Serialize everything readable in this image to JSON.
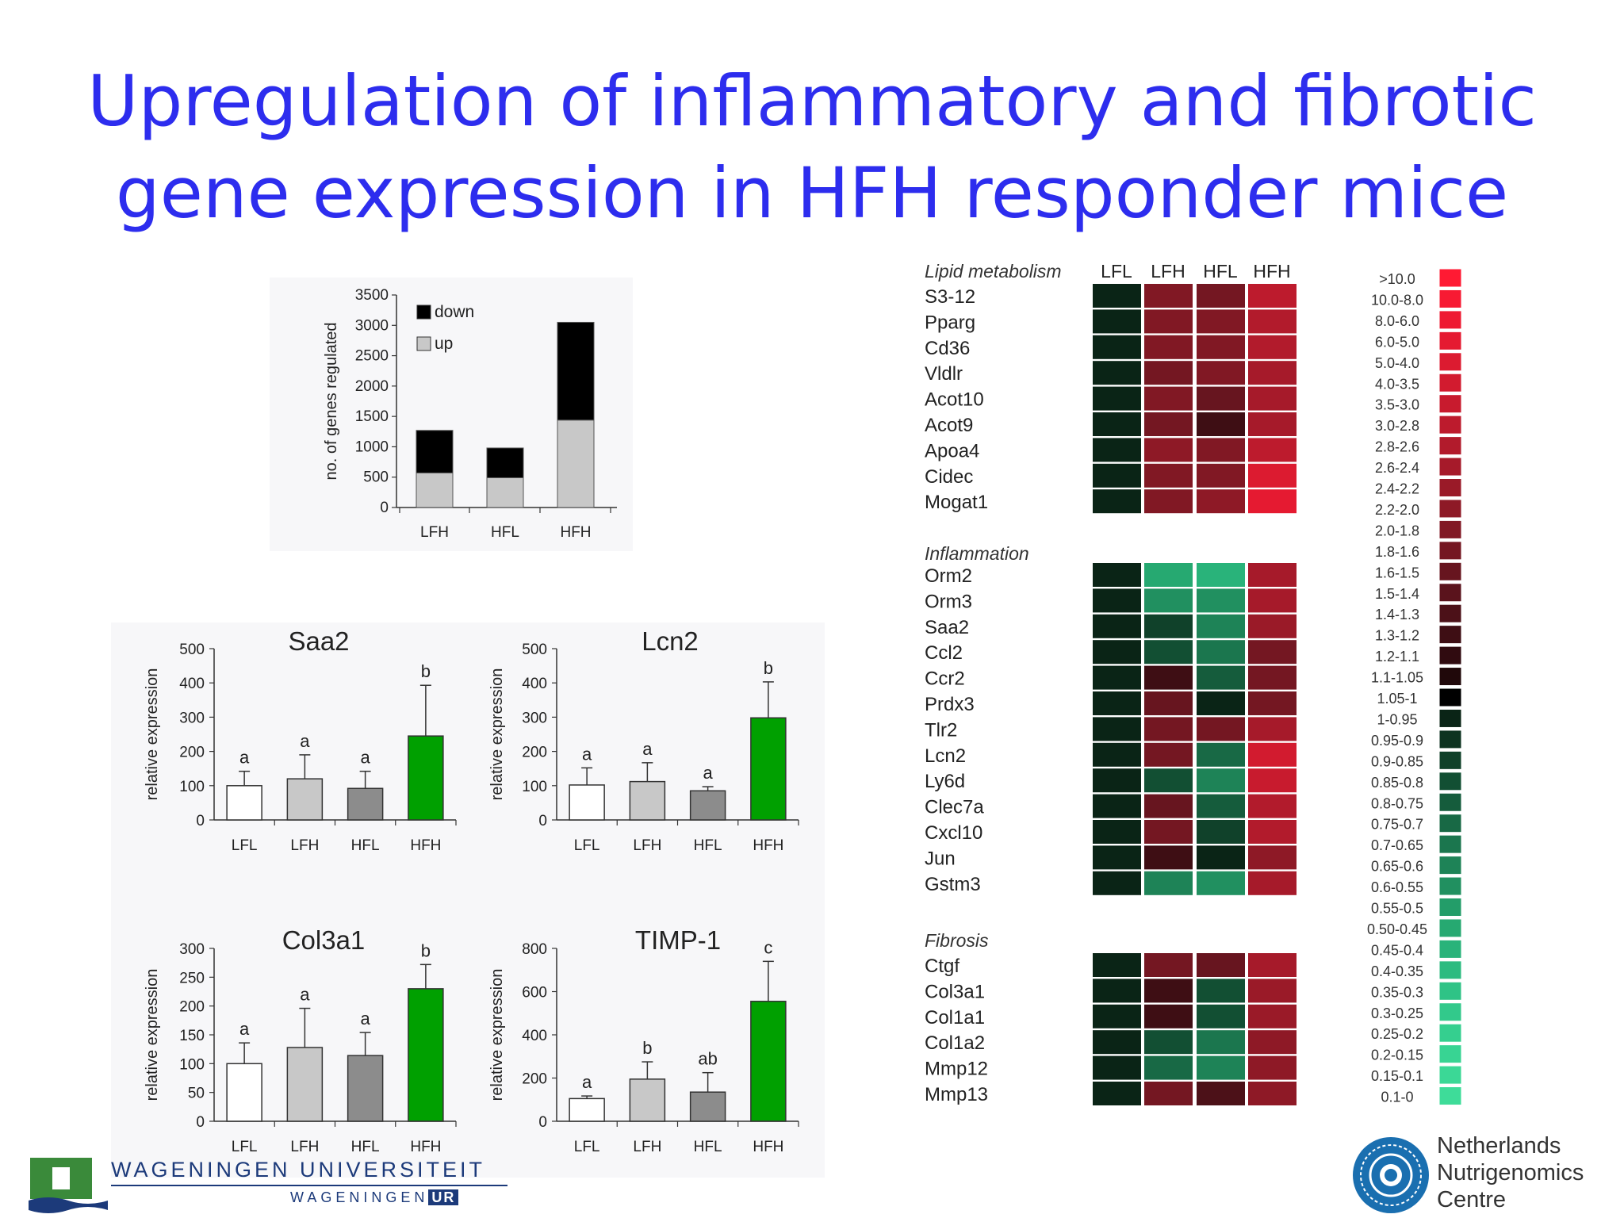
{
  "title": {
    "line1": "Upregulation of inflammatory and fibrotic",
    "line2": "gene expression in HFH responder mice"
  },
  "chart_data": [
    {
      "type": "bar",
      "stacked": true,
      "categories": [
        "LFH",
        "HFL",
        "HFH"
      ],
      "series": [
        {
          "name": "up",
          "values": [
            570,
            490,
            1440
          ],
          "color": "#c8c8c8"
        },
        {
          "name": "down",
          "values": [
            700,
            490,
            1610
          ],
          "color": "#000000"
        }
      ],
      "ylabel": "no. of genes regulated",
      "ylim": [
        0,
        3500
      ],
      "yticks": [
        "0",
        "500",
        "1000",
        "1500",
        "2000",
        "2500",
        "3000",
        "3500"
      ],
      "legend": "top-left"
    },
    {
      "type": "bar",
      "title": "Saa2",
      "categories": [
        "LFL",
        "LFH",
        "HFL",
        "HFH"
      ],
      "values": [
        100,
        120,
        92,
        245
      ],
      "errors": [
        42,
        70,
        50,
        148
      ],
      "annotations": [
        "a",
        "a",
        "a",
        "b"
      ],
      "ylabel": "relative expression",
      "ylim": [
        0,
        500
      ],
      "yticks": [
        "0",
        "100",
        "200",
        "300",
        "400",
        "500"
      ],
      "colors": [
        "#ffffff",
        "#c8c8c8",
        "#8c8c8c",
        "#00a000"
      ]
    },
    {
      "type": "bar",
      "title": "Lcn2",
      "categories": [
        "LFL",
        "LFH",
        "HFL",
        "HFH"
      ],
      "values": [
        102,
        112,
        85,
        298
      ],
      "errors": [
        50,
        55,
        12,
        105
      ],
      "annotations": [
        "a",
        "a",
        "a",
        "b"
      ],
      "ylabel": "relative expression",
      "ylim": [
        0,
        500
      ],
      "yticks": [
        "0",
        "100",
        "200",
        "300",
        "400",
        "500"
      ],
      "colors": [
        "#ffffff",
        "#c8c8c8",
        "#8c8c8c",
        "#00a000"
      ]
    },
    {
      "type": "bar",
      "title": "Col3a1",
      "categories": [
        "LFL",
        "LFH",
        "HFL",
        "HFH"
      ],
      "values": [
        100,
        128,
        114,
        230
      ],
      "errors": [
        36,
        68,
        40,
        42
      ],
      "annotations": [
        "a",
        "a",
        "a",
        "b"
      ],
      "ylabel": "relative expression",
      "ylim": [
        0,
        300
      ],
      "yticks": [
        "0",
        "50",
        "100",
        "150",
        "200",
        "250",
        "300"
      ],
      "colors": [
        "#ffffff",
        "#c8c8c8",
        "#8c8c8c",
        "#00a000"
      ]
    },
    {
      "type": "bar",
      "title": "TIMP-1",
      "categories": [
        "LFL",
        "LFH",
        "HFL",
        "HFH"
      ],
      "values": [
        105,
        195,
        135,
        555
      ],
      "errors": [
        12,
        80,
        90,
        185
      ],
      "annotations": [
        "a",
        "b",
        "ab",
        "c"
      ],
      "ylabel": "relative expression",
      "ylim": [
        0,
        800
      ],
      "yticks": [
        "0",
        "200",
        "400",
        "600",
        "800"
      ],
      "colors": [
        "#ffffff",
        "#c8c8c8",
        "#8c8c8c",
        "#00a000"
      ]
    },
    {
      "type": "heatmap",
      "columns": [
        "LFL",
        "LFH",
        "HFL",
        "HFH"
      ],
      "groups": [
        {
          "name": "Lipid metabolism",
          "rows": [
            {
              "gene": "S3-12",
              "values": [
                1.0,
                1.9,
                1.7,
                2.9
              ]
            },
            {
              "gene": "Pparg",
              "values": [
                1.0,
                1.9,
                1.9,
                2.7
              ]
            },
            {
              "gene": "Cd36",
              "values": [
                1.0,
                2.0,
                1.9,
                2.7
              ]
            },
            {
              "gene": "Vldlr",
              "values": [
                1.0,
                1.8,
                1.9,
                2.6
              ]
            },
            {
              "gene": "Acot10",
              "values": [
                1.0,
                1.9,
                1.6,
                2.6
              ]
            },
            {
              "gene": "Acot9",
              "values": [
                1.0,
                1.8,
                1.3,
                2.6
              ]
            },
            {
              "gene": "Apoa4",
              "values": [
                1.0,
                2.2,
                1.9,
                3.0
              ]
            },
            {
              "gene": "Cidec",
              "values": [
                1.0,
                2.0,
                1.9,
                4.5
              ]
            },
            {
              "gene": "Mogat1",
              "values": [
                1.0,
                2.0,
                2.2,
                5.5
              ]
            }
          ]
        },
        {
          "name": "Inflammation",
          "rows": [
            {
              "gene": "Orm2",
              "values": [
                1.0,
                0.5,
                0.45,
                2.6
              ]
            },
            {
              "gene": "Orm3",
              "values": [
                1.0,
                0.6,
                0.6,
                2.6
              ]
            },
            {
              "gene": "Saa2",
              "values": [
                1.0,
                0.9,
                0.65,
                2.3
              ]
            },
            {
              "gene": "Ccl2",
              "values": [
                1.0,
                0.85,
                0.7,
                1.7
              ]
            },
            {
              "gene": "Ccr2",
              "values": [
                1.0,
                1.3,
                0.8,
                1.7
              ]
            },
            {
              "gene": "Prdx3",
              "values": [
                1.0,
                1.6,
                1.0,
                1.8
              ]
            },
            {
              "gene": "Tlr2",
              "values": [
                1.0,
                1.7,
                1.7,
                2.5
              ]
            },
            {
              "gene": "Lcn2",
              "values": [
                1.0,
                1.8,
                0.75,
                4.0
              ]
            },
            {
              "gene": "Ly6d",
              "values": [
                1.0,
                0.85,
                0.65,
                3.2
              ]
            },
            {
              "gene": "Clec7a",
              "values": [
                1.0,
                1.6,
                0.8,
                2.7
              ]
            },
            {
              "gene": "Cxcl10",
              "values": [
                1.0,
                1.8,
                0.9,
                2.8
              ]
            },
            {
              "gene": "Jun",
              "values": [
                1.0,
                1.3,
                1.0,
                2.2
              ]
            },
            {
              "gene": "Gstm3",
              "values": [
                1.0,
                0.65,
                0.6,
                2.6
              ]
            }
          ]
        },
        {
          "name": "Fibrosis",
          "rows": [
            {
              "gene": "Ctgf",
              "values": [
                1.0,
                1.8,
                1.6,
                2.5
              ]
            },
            {
              "gene": "Col3a1",
              "values": [
                1.0,
                1.3,
                0.85,
                2.3
              ]
            },
            {
              "gene": "Col1a1",
              "values": [
                1.0,
                1.3,
                0.85,
                2.3
              ]
            },
            {
              "gene": "Col1a2",
              "values": [
                1.0,
                0.85,
                0.7,
                2.1
              ]
            },
            {
              "gene": "Mmp12",
              "values": [
                1.0,
                0.75,
                0.65,
                2.1
              ]
            },
            {
              "gene": "Mmp13",
              "values": [
                1.0,
                1.8,
                1.4,
                2.1
              ]
            }
          ]
        }
      ]
    }
  ],
  "color_scale": {
    "labels": [
      ">10.0",
      "10.0-8.0",
      "8.0-6.0",
      "6.0-5.0",
      "5.0-4.0",
      "4.0-3.5",
      "3.5-3.0",
      "3.0-2.8",
      "2.8-2.6",
      "2.6-2.4",
      "2.4-2.2",
      "2.2-2.0",
      "2.0-1.8",
      "1.8-1.6",
      "1.6-1.5",
      "1.5-1.4",
      "1.4-1.3",
      "1.3-1.2",
      "1.2-1.1",
      "1.1-1.05",
      "1.05-1",
      "1-0.95",
      "0.95-0.9",
      "0.9-0.85",
      "0.85-0.8",
      "0.8-0.75",
      "0.75-0.7",
      "0.7-0.65",
      "0.65-0.6",
      "0.6-0.55",
      "0.55-0.5",
      "0.50-0.45",
      "0.45-0.4",
      "0.4-0.35",
      "0.35-0.3",
      "0.3-0.25",
      "0.25-0.2",
      "0.2-0.15",
      "0.15-0.1",
      "0.1-0"
    ],
    "colors": [
      "#ff1a33",
      "#f71a33",
      "#ee1a32",
      "#e51a31",
      "#dc1b30",
      "#d21b2f",
      "#c81b2e",
      "#bd1b2d",
      "#b21b2c",
      "#a61a2a",
      "#9a1a28",
      "#8e1926",
      "#811824",
      "#741722",
      "#67151f",
      "#5a131c",
      "#4c1118",
      "#3e0e14",
      "#300b10",
      "#20080a",
      "#000000",
      "#0a2416",
      "#0d3320",
      "#10412a",
      "#124f33",
      "#155c3c",
      "#186945",
      "#1b764e",
      "#1e8357",
      "#219060",
      "#239d69",
      "#26a971",
      "#29b37a",
      "#2cbb80",
      "#2fc386",
      "#32c98b",
      "#35cf8f",
      "#38d493",
      "#3bd896",
      "#3edc99"
    ]
  },
  "logos": {
    "wur_name": "WAGENINGEN UNIVERSITEIT",
    "wur_sub_a": "WAGENINGEN",
    "wur_sub_b": "UR",
    "nnc_line1": "Netherlands",
    "nnc_line2": "Nutrigenomics",
    "nnc_line3": "Centre"
  }
}
